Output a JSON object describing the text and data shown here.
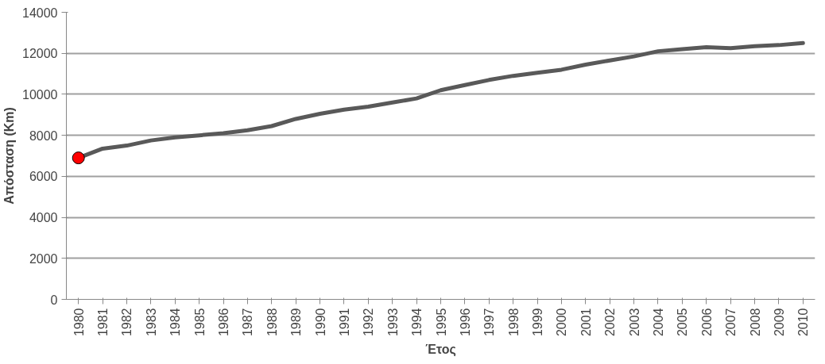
{
  "chart_data": {
    "type": "line",
    "xlabel": "Έτος",
    "ylabel": "Απόσταση (Km)",
    "categories": [
      "1980",
      "1981",
      "1982",
      "1983",
      "1984",
      "1985",
      "1986",
      "1987",
      "1988",
      "1989",
      "1990",
      "1991",
      "1992",
      "1993",
      "1994",
      "1995",
      "1996",
      "1997",
      "1998",
      "1999",
      "2000",
      "2001",
      "2002",
      "2003",
      "2004",
      "2005",
      "2006",
      "2007",
      "2008",
      "2009",
      "2010"
    ],
    "series": [
      {
        "color": "#595959",
        "marker": "none",
        "values": [
          6900,
          7350,
          7500,
          7750,
          7900,
          8000,
          8100,
          8250,
          8450,
          8800,
          9050,
          9250,
          9400,
          9600,
          9800,
          10200,
          10450,
          10700,
          10900,
          11050,
          11200,
          11450,
          11650,
          11850,
          12100,
          12200,
          12300,
          12250,
          12350,
          12400,
          12500
        ]
      },
      {
        "type": "scatter",
        "color": "#ff0000",
        "marker": "circle",
        "values": [
          6900,
          null,
          null,
          null,
          null,
          null,
          null,
          null,
          null,
          null,
          null,
          null,
          null,
          null,
          null,
          null,
          null,
          null,
          null,
          null,
          null,
          null,
          null,
          null,
          null,
          null,
          null,
          null,
          null,
          null,
          null
        ]
      }
    ],
    "ylim": [
      0,
      14000
    ],
    "yticks": [
      0,
      2000,
      4000,
      6000,
      8000,
      10000,
      12000,
      14000
    ],
    "grid": "y"
  }
}
